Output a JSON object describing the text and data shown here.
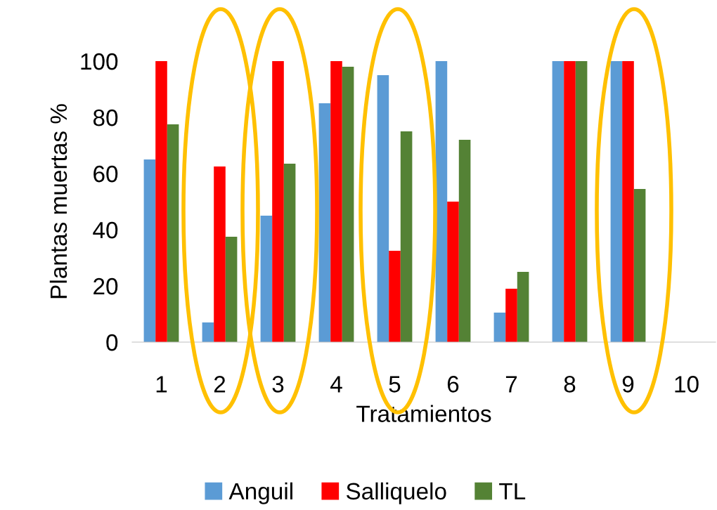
{
  "chart_data": {
    "type": "bar",
    "xlabel": "Tratamientos",
    "ylabel": "Plantas muertas %",
    "categories": [
      "1",
      "2",
      "3",
      "4",
      "5",
      "6",
      "7",
      "8",
      "9",
      "10"
    ],
    "series": [
      {
        "name": "Anguil",
        "color": "#5b9bd5",
        "values": [
          65,
          7,
          45,
          85,
          95,
          100,
          10.5,
          100,
          100,
          null
        ]
      },
      {
        "name": "Salliquelo",
        "color": "#ff0000",
        "values": [
          100,
          62.5,
          100,
          100,
          32.5,
          50,
          19,
          100,
          100,
          null
        ]
      },
      {
        "name": "TL",
        "color": "#548235",
        "values": [
          77.5,
          37.5,
          63.5,
          98,
          75,
          72,
          25,
          100,
          54.5,
          null
        ]
      }
    ],
    "ylim": [
      0,
      100
    ],
    "yticks": [
      0,
      20,
      40,
      60,
      80,
      100
    ],
    "grid": false,
    "legend": "bottom"
  }
}
